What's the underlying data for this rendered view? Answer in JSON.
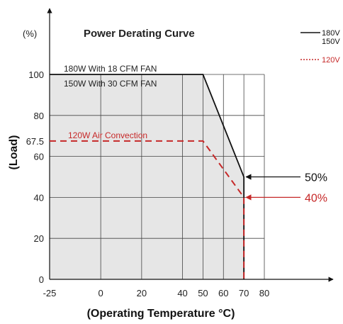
{
  "chart_data": {
    "type": "line",
    "title": "Power Derating Curve",
    "ylabel": "(Load)",
    "yunit": "(%)",
    "xlabel": "(Operating Temperature °C)",
    "xlim": [
      -25,
      80
    ],
    "ylim": [
      0,
      100
    ],
    "x_ticks": [
      "-25",
      "0",
      "20",
      "40",
      "50",
      "60",
      "70",
      "80"
    ],
    "x_tick_values": [
      -25,
      0,
      20,
      40,
      50,
      60,
      70,
      80
    ],
    "y_ticks": [
      "0",
      "20",
      "40",
      "60",
      "67.5",
      "80",
      "100"
    ],
    "y_tick_values": [
      0,
      20,
      40,
      60,
      67.5,
      80,
      100
    ],
    "grid": true,
    "series": [
      {
        "name": "180W / 150W",
        "color": "#111111",
        "style": "solid",
        "x": [
          -25,
          50,
          70,
          70
        ],
        "y": [
          100,
          100,
          50,
          0
        ]
      },
      {
        "name": "120W",
        "color": "#c62828",
        "style": "dashed",
        "x": [
          -25,
          50,
          70,
          70
        ],
        "y": [
          67.5,
          67.5,
          40,
          0
        ]
      }
    ],
    "annotations": [
      {
        "text": "180W With 18 CFM FAN",
        "color": "#222222"
      },
      {
        "text": "150W With 30 CFM FAN",
        "color": "#222222"
      },
      {
        "text": "120W Air Convection",
        "color": "#c62828"
      }
    ],
    "callouts": [
      {
        "text": "50%",
        "y": 50,
        "color": "#111111"
      },
      {
        "text": "40%",
        "y": 40,
        "color": "#c62828"
      }
    ],
    "legend": [
      {
        "text": "180V",
        "color": "#111111"
      },
      {
        "text": "150V",
        "color": "#111111"
      },
      {
        "text": "120V",
        "color": "#c62828"
      }
    ],
    "colors": {
      "shade": "#e6e6e6",
      "grid": "#444444",
      "axis": "#111111"
    }
  }
}
